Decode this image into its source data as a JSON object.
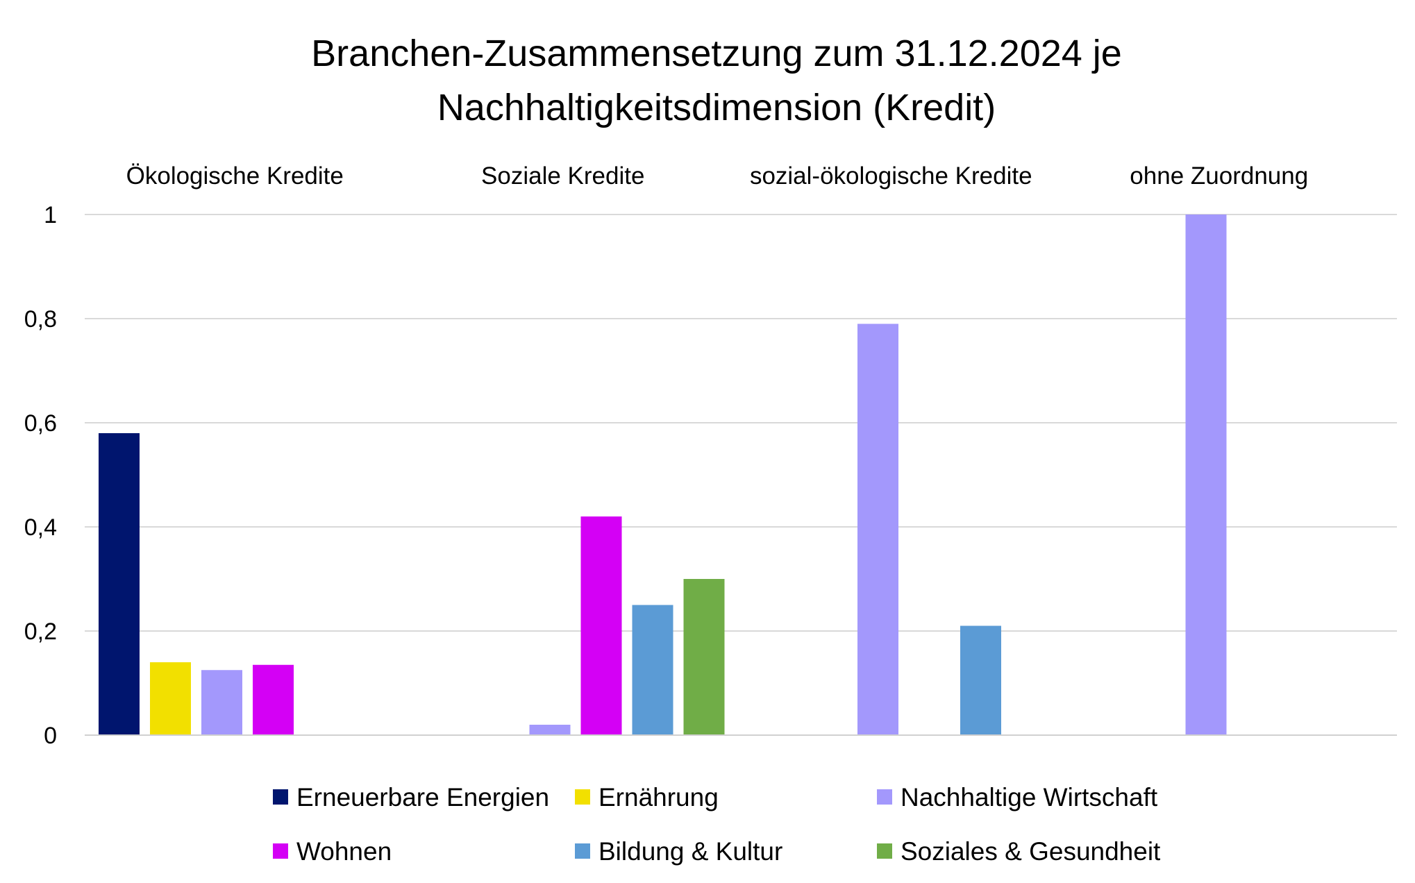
{
  "chart_data": {
    "type": "bar",
    "title_lines": [
      "Branchen-Zusammensetzung zum 31.12.2024 je",
      "Nachhaltigkeitsdimension (Kredit)"
    ],
    "categories": [
      "Ökologische Kredite",
      "Soziale Kredite",
      "sozial-ökologische Kredite",
      "ohne Zuordnung"
    ],
    "y_ticks": [
      "0",
      "0,2",
      "0,4",
      "0,6",
      "0,8",
      "1"
    ],
    "ylim": [
      0,
      1
    ],
    "grid": true,
    "legend_position": "bottom",
    "series": [
      {
        "name": "Erneuerbare Energien",
        "color": "#00156e",
        "values": [
          0.58,
          0,
          0,
          0
        ]
      },
      {
        "name": "Ernährung",
        "color": "#f2e000",
        "values": [
          0.14,
          0,
          0,
          0
        ]
      },
      {
        "name": "Nachhaltige Wirtschaft",
        "color": "#a398fc",
        "values": [
          0.125,
          0.02,
          0.79,
          1.0
        ]
      },
      {
        "name": "Wohnen",
        "color": "#d400f5",
        "values": [
          0.135,
          0.42,
          0,
          0
        ]
      },
      {
        "name": "Bildung & Kultur",
        "color": "#5b9bd5",
        "values": [
          0,
          0.25,
          0.21,
          0
        ]
      },
      {
        "name": "Soziales & Gesundheit",
        "color": "#70ad47",
        "values": [
          0,
          0.3,
          0,
          0
        ]
      }
    ]
  }
}
